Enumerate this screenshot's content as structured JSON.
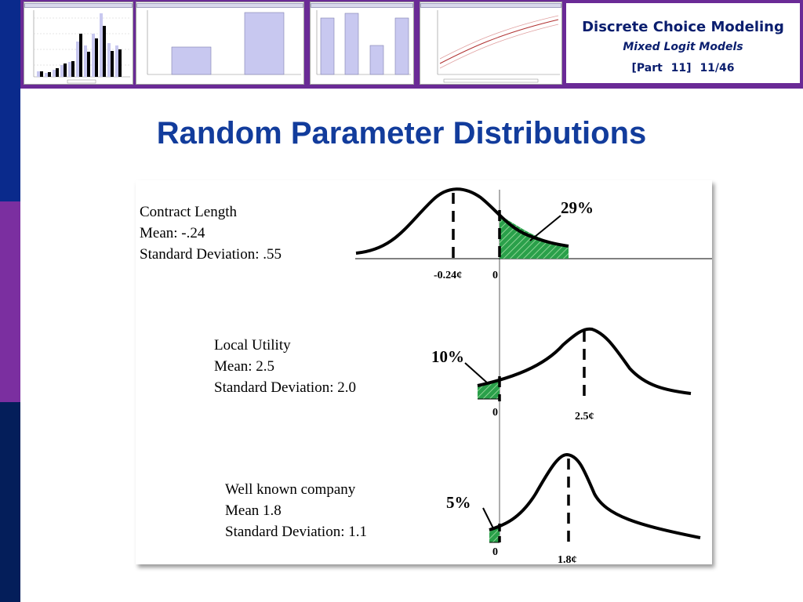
{
  "header": {
    "title": "Discrete Choice Modeling",
    "subtitle": "Mixed Logit Models",
    "part_label": "[Part 11]",
    "page_label": "11/46"
  },
  "slide": {
    "title": "Random Parameter Distributions"
  },
  "panels": [
    {
      "line1": "Contract Length",
      "line2": "Mean: -.24",
      "line3": "Standard Deviation: .55",
      "percent": "29%",
      "tick_mean": "-0.24¢",
      "tick_zero": "0"
    },
    {
      "line1": "Local Utility",
      "line2": "Mean: 2.5",
      "line3": "Standard Deviation: 2.0",
      "percent": "10%",
      "tick_mean": "2.5¢",
      "tick_zero": "0"
    },
    {
      "line1": "Well known company",
      "line2": "Mean 1.8",
      "line3": "Standard Deviation: 1.1",
      "percent": "5%",
      "tick_mean": "1.8¢",
      "tick_zero": "0"
    }
  ],
  "colors": {
    "title_blue": "#123c9c",
    "shade_green": "#2aa04a",
    "band_purple": "#6a2a96",
    "sidebar_blue": "#0a2a8c"
  }
}
